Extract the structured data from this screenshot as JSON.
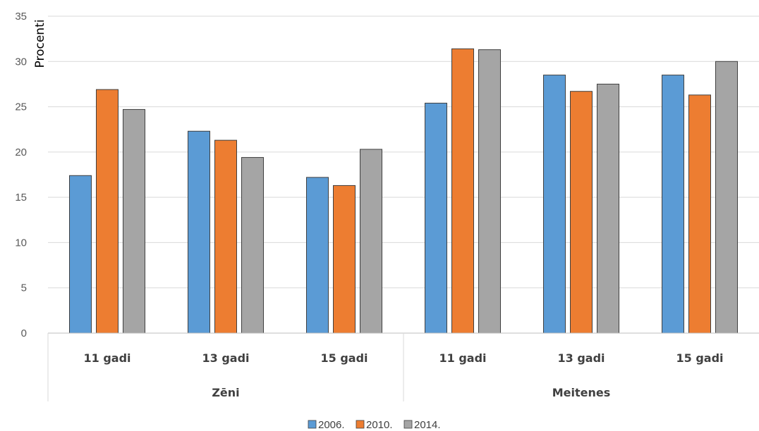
{
  "chart_data": {
    "type": "bar",
    "title": "",
    "ylabel": "Procenti",
    "ylim": [
      0,
      35
    ],
    "yticks": [
      0,
      5,
      10,
      15,
      20,
      25,
      30,
      35
    ],
    "grid": true,
    "legend_position": "bottom",
    "groups": [
      {
        "label": "Zēni",
        "categories": [
          "11 gadi",
          "13 gadi",
          "15 gadi"
        ]
      },
      {
        "label": "Meitenes",
        "categories": [
          "11 gadi",
          "13 gadi",
          "15 gadi"
        ]
      }
    ],
    "series": [
      {
        "name": "2006.",
        "color": "#5B9BD5",
        "values": [
          17.4,
          22.3,
          17.2,
          25.4,
          28.5,
          28.5
        ]
      },
      {
        "name": "2010.",
        "color": "#ED7D31",
        "values": [
          26.9,
          21.3,
          16.3,
          31.4,
          26.7,
          26.3
        ]
      },
      {
        "name": "2014.",
        "color": "#A5A5A5",
        "values": [
          24.7,
          19.4,
          20.3,
          31.3,
          27.5,
          30.0
        ]
      }
    ]
  }
}
